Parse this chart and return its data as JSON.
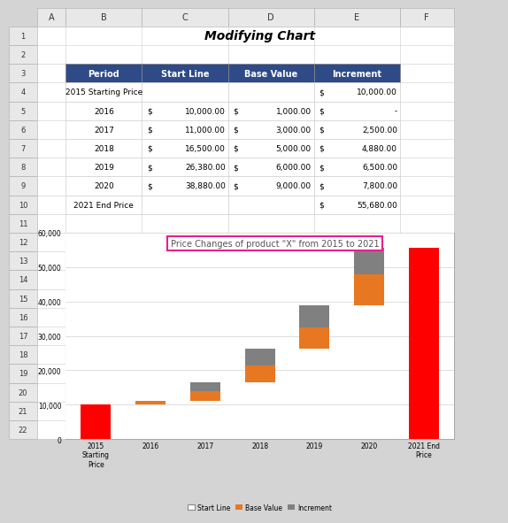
{
  "title": "Modifying Chart",
  "chart_title": "Price Changes of product \"X\" from 2015 to 2021",
  "categories": [
    "2015\nStarting\nPrice",
    "2016",
    "2017",
    "2018",
    "2019",
    "2020",
    "2021 End\nPrice"
  ],
  "start_line": [
    0,
    10000,
    11000,
    16500,
    26380,
    38880,
    0
  ],
  "base_value": [
    0,
    1000,
    3000,
    5000,
    6000,
    9000,
    0
  ],
  "increment": [
    10000,
    0,
    2500,
    4880,
    6500,
    7800,
    55680
  ],
  "color_base_value": "#e87722",
  "color_increment_normal": "#808080",
  "color_increment_special": "#ff0000",
  "special_indices": [
    0,
    6
  ],
  "ylim": [
    0,
    60000
  ],
  "yticks": [
    0,
    10000,
    20000,
    30000,
    40000,
    50000,
    60000
  ],
  "legend_labels": [
    "Start Line",
    "Base Value",
    "Increment"
  ],
  "chart_title_box_color": "#e91e8c",
  "grid_color": "#d0d0d0",
  "table_header_color": "#2e4a87",
  "bar_width": 0.55,
  "excel_bg": "#d4d4d4",
  "excel_header_bg": "#e8e8e8",
  "col_letters": [
    "A",
    "B",
    "C",
    "D",
    "E",
    "F"
  ],
  "row_numbers": [
    "1",
    "2",
    "3",
    "4",
    "5",
    "6",
    "7",
    "8",
    "9",
    "10",
    "11",
    "12",
    "13",
    "14",
    "15",
    "16",
    "17",
    "18",
    "19",
    "20",
    "21",
    "22"
  ],
  "table_rows": [
    [
      "2015 Starting Price",
      "",
      "",
      "$ 10,000.00"
    ],
    [
      "2016",
      "$ 10,000.00",
      "$ 1,000.00",
      "$ -"
    ],
    [
      "2017",
      "$ 11,000.00",
      "$ 3,000.00",
      "$ 2,500.00"
    ],
    [
      "2018",
      "$ 16,500.00",
      "$ 5,000.00",
      "$ 4,880.00"
    ],
    [
      "2019",
      "$ 26,380.00",
      "$ 6,000.00",
      "$ 6,500.00"
    ],
    [
      "2020",
      "$ 38,880.00",
      "$ 9,000.00",
      "$ 7,800.00"
    ],
    [
      "2021 End Price",
      "",
      "",
      "$ 55,680.00"
    ]
  ]
}
